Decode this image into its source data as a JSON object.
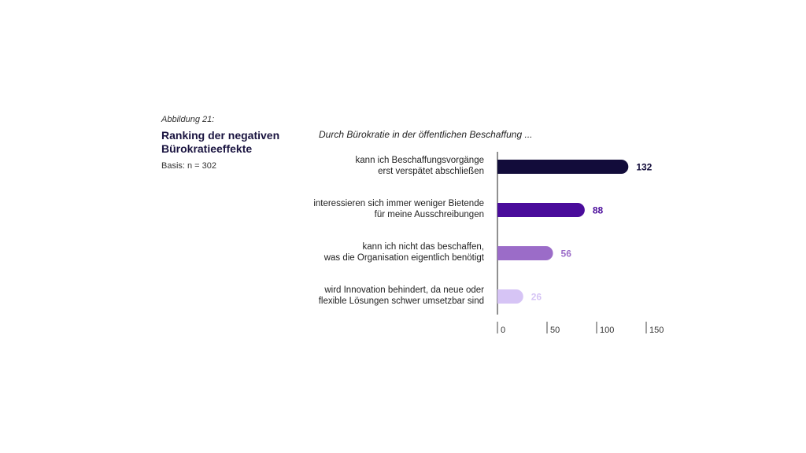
{
  "figure": {
    "label": "Abbildung 21:",
    "title": "Ranking der negativen Bürokratieeffekte",
    "basis": "Basis: n = 302"
  },
  "chart_data": {
    "type": "bar",
    "orientation": "horizontal",
    "subtitle": "Durch Bürokratie in der öffentlichen Beschaffung ...",
    "categories": [
      "kann ich Beschaffungsvorgänge erst verspätet abschließen",
      "interessieren sich immer weniger Bietende für meine Ausschreibungen",
      "kann ich nicht das beschaffen, was die Organisation eigentlich benötigt",
      "wird Innovation behindert, da neue oder flexible Lösungen schwer umsetzbar sind"
    ],
    "category_lines": [
      [
        "kann ich Beschaffungsvorgänge",
        "erst verspätet abschließen"
      ],
      [
        "interessieren sich immer weniger Bietende",
        "für meine Ausschreibungen"
      ],
      [
        "kann ich nicht das beschaffen,",
        "was die Organisation eigentlich benötigt"
      ],
      [
        "wird Innovation behindert, da neue oder",
        "flexible Lösungen schwer umsetzbar sind"
      ]
    ],
    "values": [
      132,
      88,
      56,
      26
    ],
    "value_labels": [
      "132",
      "88",
      "56",
      "26"
    ],
    "colors": [
      "#120c3a",
      "#4a0c9b",
      "#9b6cc8",
      "#d6c4f5"
    ],
    "label_colors": [
      "#120c3a",
      "#4a0c9b",
      "#9b6cc8",
      "#d6c4f5"
    ],
    "xlim": [
      0,
      150
    ],
    "xticks": [
      0,
      50,
      100,
      150
    ],
    "xtick_labels": [
      "0",
      "50",
      "100",
      "150"
    ],
    "grid": false
  }
}
